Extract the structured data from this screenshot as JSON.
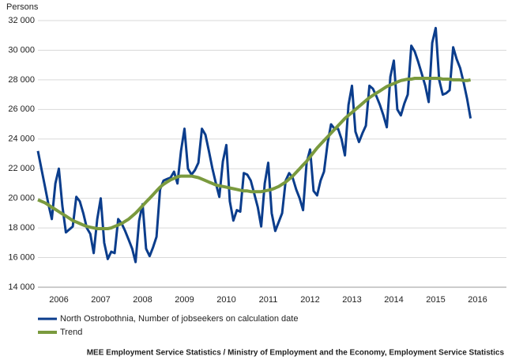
{
  "chart_data": {
    "type": "line",
    "y_label": "Persons",
    "source": "MEE Employment Service Statistics / Ministry of Employment and the Economy, Employment Service Statistics",
    "x": [
      2006,
      2006.083,
      2006.167,
      2006.25,
      2006.333,
      2006.417,
      2006.5,
      2006.583,
      2006.667,
      2006.75,
      2006.833,
      2006.917,
      2007,
      2007.083,
      2007.167,
      2007.25,
      2007.333,
      2007.417,
      2007.5,
      2007.583,
      2007.667,
      2007.75,
      2007.833,
      2007.917,
      2008,
      2008.083,
      2008.167,
      2008.25,
      2008.333,
      2008.417,
      2008.5,
      2008.583,
      2008.667,
      2008.75,
      2008.833,
      2008.917,
      2009,
      2009.083,
      2009.167,
      2009.25,
      2009.333,
      2009.417,
      2009.5,
      2009.583,
      2009.667,
      2009.75,
      2009.833,
      2009.917,
      2010,
      2010.083,
      2010.167,
      2010.25,
      2010.333,
      2010.417,
      2010.5,
      2010.583,
      2010.667,
      2010.75,
      2010.833,
      2010.917,
      2011,
      2011.083,
      2011.167,
      2011.25,
      2011.333,
      2011.417,
      2011.5,
      2011.583,
      2011.667,
      2011.75,
      2011.833,
      2011.917,
      2012,
      2012.083,
      2012.167,
      2012.25,
      2012.333,
      2012.417,
      2012.5,
      2012.583,
      2012.667,
      2012.75,
      2012.833,
      2012.917,
      2013,
      2013.083,
      2013.167,
      2013.25,
      2013.333,
      2013.417,
      2013.5,
      2013.583,
      2013.667,
      2013.75,
      2013.833,
      2013.917,
      2014,
      2014.083,
      2014.167,
      2014.25,
      2014.333,
      2014.417,
      2014.5,
      2014.583,
      2014.667,
      2014.75,
      2014.833,
      2014.917,
      2015,
      2015.083,
      2015.167,
      2015.25,
      2015.333,
      2015.417,
      2015.5,
      2015.583,
      2015.667,
      2015.75,
      2015.833,
      2015.917,
      2016,
      2016.083,
      2016.167,
      2016.25,
      2016.333
    ],
    "series": [
      {
        "name": "North Ostrobothnia, Number of jobseekers on calculation date",
        "color": "#0b3d8c",
        "width": 3,
        "values": [
          23200,
          22000,
          20800,
          19600,
          18600,
          21000,
          22000,
          19500,
          17700,
          17900,
          18100,
          20100,
          19800,
          19000,
          18000,
          17600,
          16300,
          18600,
          20000,
          17000,
          15900,
          16400,
          16300,
          18600,
          18300,
          17800,
          17200,
          16600,
          15700,
          18500,
          19600,
          16600,
          16100,
          16700,
          17400,
          20600,
          21200,
          21300,
          21400,
          21800,
          21000,
          23200,
          24700,
          22000,
          21600,
          21900,
          22400,
          24700,
          24300,
          23200,
          22000,
          21000,
          20100,
          22500,
          23600,
          19800,
          18500,
          19200,
          19100,
          21700,
          21600,
          21200,
          20300,
          19400,
          18100,
          21000,
          22400,
          19000,
          17800,
          18400,
          19000,
          21200,
          21700,
          21400,
          20600,
          20000,
          19200,
          22400,
          23300,
          20500,
          20200,
          21200,
          21800,
          23700,
          25000,
          24700,
          24700,
          24000,
          22900,
          26300,
          27600,
          24500,
          23800,
          24400,
          24900,
          27600,
          27400,
          26900,
          26300,
          25600,
          24800,
          28200,
          29300,
          26000,
          25600,
          26400,
          27000,
          30300,
          29900,
          29200,
          28400,
          27600,
          26500,
          30500,
          31500,
          28000,
          27000,
          27100,
          27300,
          30200,
          29400,
          28800,
          27800,
          26700,
          25400
        ]
      },
      {
        "name": "Trend",
        "color": "#7a9a3e",
        "width": 4,
        "values": [
          19900,
          19800,
          19700,
          19550,
          19400,
          19250,
          19100,
          18950,
          18800,
          18650,
          18500,
          18400,
          18300,
          18200,
          18100,
          18050,
          18000,
          17950,
          17950,
          17950,
          17950,
          18000,
          18100,
          18200,
          18300,
          18450,
          18600,
          18800,
          19000,
          19250,
          19500,
          19750,
          20000,
          20250,
          20500,
          20750,
          20950,
          21100,
          21250,
          21350,
          21450,
          21500,
          21500,
          21500,
          21500,
          21450,
          21400,
          21300,
          21200,
          21100,
          21000,
          20900,
          20850,
          20800,
          20750,
          20700,
          20650,
          20600,
          20550,
          20500,
          20500,
          20450,
          20450,
          20450,
          20450,
          20500,
          20550,
          20600,
          20700,
          20800,
          20950,
          21100,
          21300,
          21500,
          21750,
          22000,
          22250,
          22500,
          22800,
          23100,
          23400,
          23650,
          23900,
          24150,
          24400,
          24650,
          24900,
          25150,
          25400,
          25600,
          25800,
          26000,
          26200,
          26400,
          26600,
          26800,
          26950,
          27100,
          27250,
          27400,
          27550,
          27650,
          27750,
          27850,
          27950,
          28000,
          28050,
          28050,
          28100,
          28100,
          28100,
          28100,
          28100,
          28100,
          28100,
          28100,
          28050,
          28050,
          28050,
          28000,
          28000,
          28000,
          27950,
          27950,
          28000
        ]
      }
    ],
    "xlim": [
      2006,
      2017
    ],
    "xticks": [
      {
        "value": 2006.5,
        "label": "2006"
      },
      {
        "value": 2007.5,
        "label": "2007"
      },
      {
        "value": 2008.5,
        "label": "2008"
      },
      {
        "value": 2009.5,
        "label": "2009"
      },
      {
        "value": 2010.5,
        "label": "2010"
      },
      {
        "value": 2011.5,
        "label": "2011"
      },
      {
        "value": 2012.5,
        "label": "2012"
      },
      {
        "value": 2013.5,
        "label": "2013"
      },
      {
        "value": 2014.5,
        "label": "2014"
      },
      {
        "value": 2015.5,
        "label": "2015"
      },
      {
        "value": 2016.5,
        "label": "2016"
      }
    ],
    "ylim": [
      14000,
      32000
    ],
    "yticks": [
      {
        "value": 14000,
        "label": "14 000"
      },
      {
        "value": 16000,
        "label": "16 000"
      },
      {
        "value": 18000,
        "label": "18 000"
      },
      {
        "value": 20000,
        "label": "20 000"
      },
      {
        "value": 22000,
        "label": "22 000"
      },
      {
        "value": 24000,
        "label": "24 000"
      },
      {
        "value": 26000,
        "label": "26 000"
      },
      {
        "value": 28000,
        "label": "28 000"
      },
      {
        "value": 30000,
        "label": "30 000"
      },
      {
        "value": 32000,
        "label": "32 000"
      }
    ],
    "grid": true
  }
}
